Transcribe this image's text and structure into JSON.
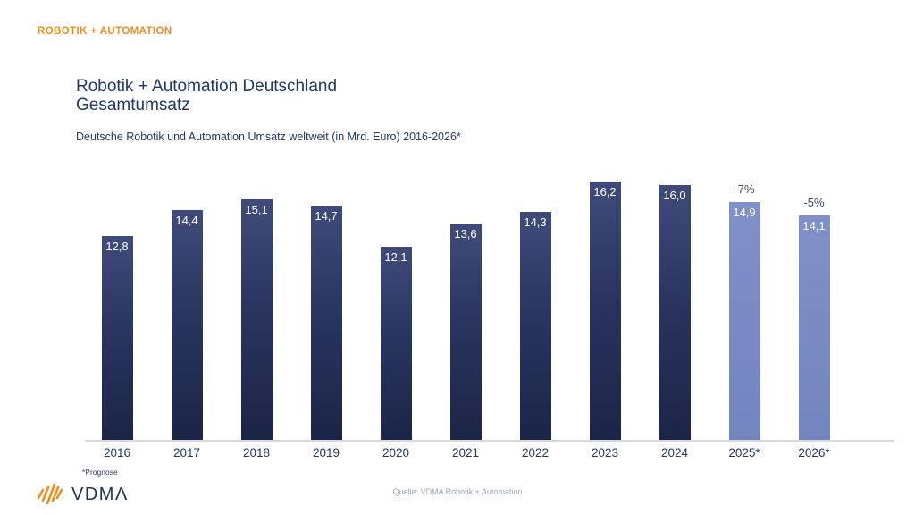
{
  "page": {
    "eyebrow": "ROBOTIK + AUTOMATION",
    "title_line1": "Robotik + Automation Deutschland",
    "title_line2": "Gesamtumsatz",
    "subtitle": "Deutsche Robotik und Automation Umsatz weltweit (in Mrd. Euro) 2016-2026*",
    "footnote": "*Prognose",
    "source": "Quelle: VDMA Robotik + Automation",
    "logo_text": "VDMΛ"
  },
  "colors": {
    "accent_orange": "#F28C1E",
    "navy_text": "#1F3864",
    "bar_dark_top": "#3F4B7A",
    "bar_dark_bottom": "#1B2547",
    "bar_forecast": "#7588C2",
    "change_label": "#3B4A63",
    "baseline": "#D9D9D9",
    "source_text": "#9AA5BF"
  },
  "chart_data": {
    "type": "bar",
    "title": "Robotik + Automation Deutschland Gesamtumsatz",
    "subtitle": "Deutsche Robotik und Automation Umsatz weltweit (in Mrd. Euro) 2016-2026*",
    "unit": "Mrd. Euro",
    "categories": [
      "2016",
      "2017",
      "2018",
      "2019",
      "2020",
      "2021",
      "2022",
      "2023",
      "2024",
      "2025*",
      "2026*"
    ],
    "values": [
      12.8,
      14.4,
      15.1,
      14.7,
      12.1,
      13.6,
      14.3,
      16.2,
      16.0,
      14.9,
      14.1
    ],
    "value_labels": [
      "12,8",
      "14,4",
      "15,1",
      "14,7",
      "12,1",
      "13,6",
      "14,3",
      "16,2",
      "16,0",
      "14,9",
      "14,1"
    ],
    "change_labels": [
      null,
      null,
      null,
      null,
      null,
      null,
      null,
      null,
      null,
      "-7%",
      "-5%"
    ],
    "forecast": [
      false,
      false,
      false,
      false,
      false,
      false,
      false,
      false,
      false,
      true,
      true
    ],
    "ylim": [
      0,
      17
    ],
    "grid": false,
    "legend": false,
    "value_label_position": "inside-top",
    "footnote": "*Prognose",
    "source": "Quelle: VDMA Robotik + Automation"
  }
}
